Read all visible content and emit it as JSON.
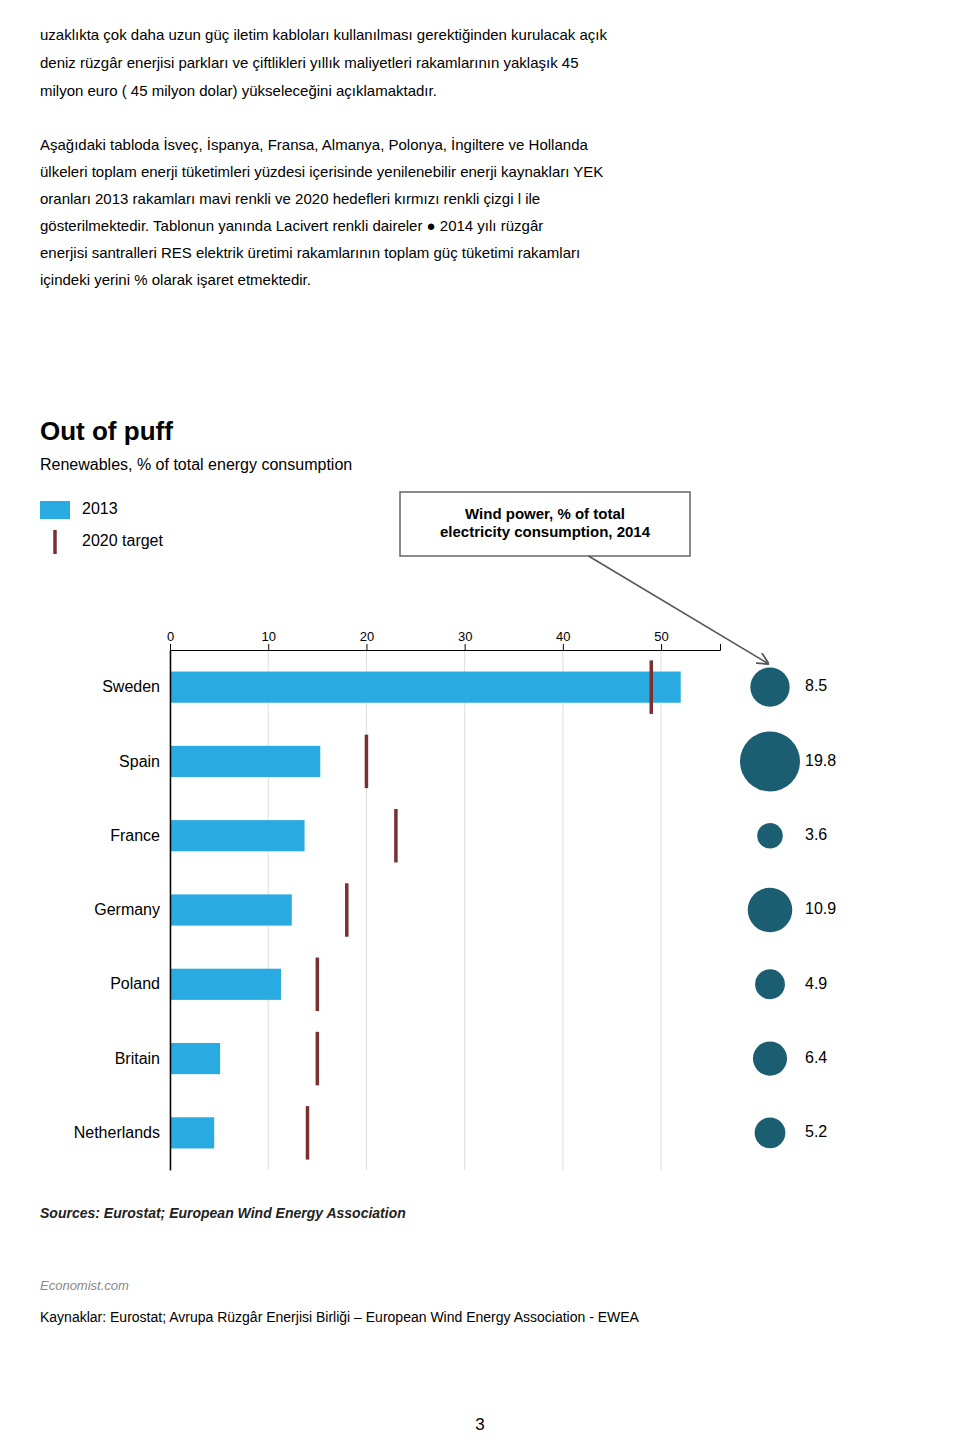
{
  "chart_data": {
    "type": "bar",
    "orientation": "horizontal",
    "title": "Out of puff",
    "subtitle": "Renewables, % of total energy consumption",
    "categories": [
      "Sweden",
      "Spain",
      "France",
      "Germany",
      "Poland",
      "Britain",
      "Netherlands"
    ],
    "series": [
      {
        "name": "2013",
        "color": "#29ABE2",
        "values": [
          52,
          15.3,
          13.7,
          12.4,
          11.3,
          5.1,
          4.5
        ]
      },
      {
        "name": "2020 target",
        "type": "scatter",
        "marker": "vline",
        "color": "#7B3030",
        "values": [
          49,
          20,
          23,
          18,
          15,
          15,
          14
        ]
      },
      {
        "name": "Wind power, % of total\nelectricity consumption, 2014",
        "type": "bubble",
        "color": "#1B5E72",
        "values": [
          8.5,
          19.8,
          3.6,
          10.9,
          4.9,
          6.4,
          5.2
        ],
        "data_labels": true
      }
    ],
    "xlim": [
      0,
      56
    ],
    "xticks": [
      0,
      10,
      20,
      30,
      40,
      50
    ],
    "grid": true,
    "legend": "upper left",
    "source": "Sources: Eurostat; European Wind Energy Association"
  },
  "page": {
    "lines": [
      "uzaklıkta çok daha uzun güç iletim kabloları kullanılması gerektiğinden kurulacak açık",
      "deniz rüzgâr enerjisi parkları ve çiftlikleri yıllık maliyetleri rakamlarının yaklaşık 45",
      "milyon euro ( 45 milyon dolar) yükseleceğini açıklamaktadır."
    ],
    "paragraph": [
      "Aşağıdaki tabloda İsveç, İspanya, Fransa, Almanya, Polonya, İngiltere ve Hollanda",
      "ülkeleri toplam enerji tüketimleri yüzdesi içerisinde yenilenebilir enerji kaynakları YEK",
      "oranları 2013 rakamları mavi renkli ve 2020 hedefleri kırmızı renkli çizgi l ile",
      "gösterilmektedir. Tablonun yanında Lacivert renkli daireler ● 2014 yılı rüzgâr",
      "enerjisi santralleri RES elektrik üretimi rakamlarının toplam güç tüketimi rakamları",
      "içindeki yerini % olarak işaret etmektedir."
    ],
    "site": "Economist.com",
    "footer": "Kaynaklar: Eurostat; Avrupa Rüzgâr Enerjisi Birliği – European Wind Energy Association - EWEA",
    "page_number": "3"
  }
}
